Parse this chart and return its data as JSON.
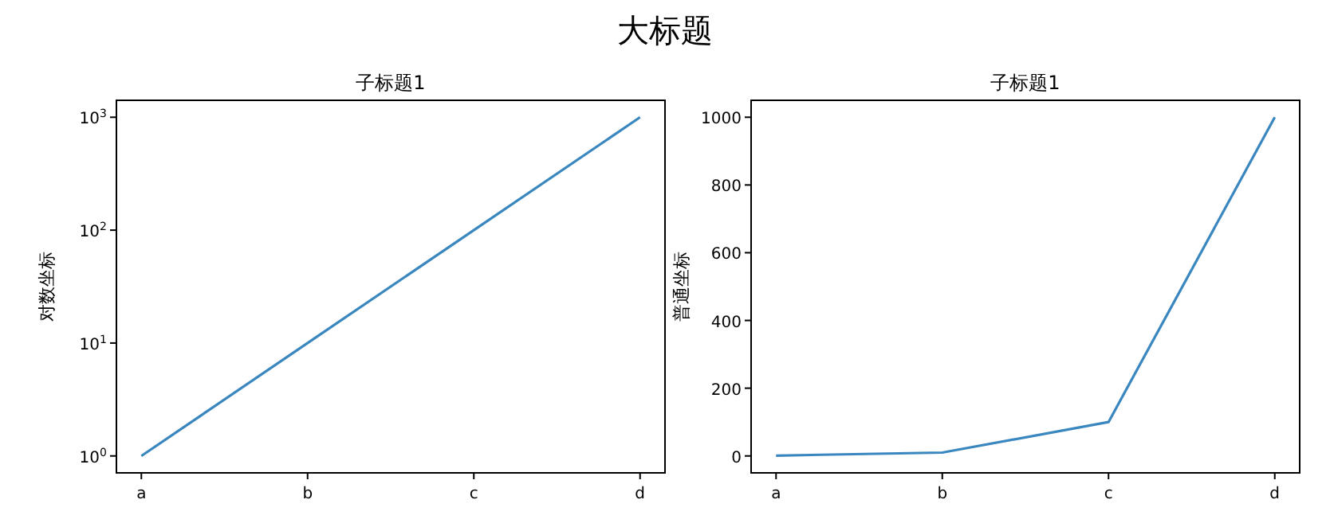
{
  "chart_data": [
    {
      "type": "line",
      "title": "子标题1",
      "ylabel": "对数坐标",
      "annotations": [
        "大标题"
      ],
      "categories": [
        "a",
        "b",
        "c",
        "d"
      ],
      "log": "y",
      "ylim": [
        0.708,
        1413
      ],
      "yticks": [
        {
          "value": 1,
          "label": "10$^{0}$"
        },
        {
          "value": 10,
          "label": "10$^{1}$"
        },
        {
          "value": 100,
          "label": "10$^{2}$"
        },
        {
          "value": 1000,
          "label": "10$^{3}$"
        }
      ],
      "series": [
        {
          "color": "#3a87c0",
          "values": [
            1,
            10,
            100,
            1000
          ]
        }
      ]
    },
    {
      "type": "line",
      "title": "子标题1",
      "ylabel": "普通坐标",
      "categories": [
        "a",
        "b",
        "c",
        "d"
      ],
      "ylim": [
        -50,
        1050
      ],
      "yticks": [
        0,
        200,
        400,
        600,
        800,
        1000
      ],
      "series": [
        {
          "color": "#3a87c0",
          "values": [
            1,
            10,
            100,
            1000
          ]
        }
      ]
    }
  ]
}
